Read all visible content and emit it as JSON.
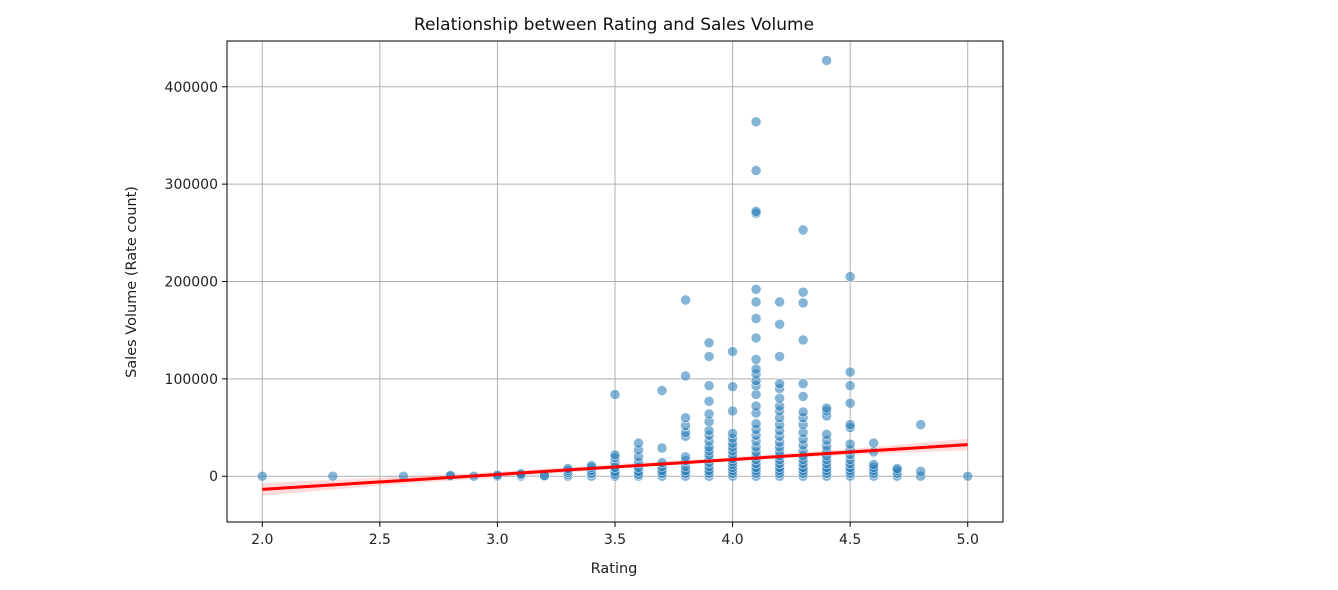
{
  "chart_data": {
    "type": "scatter",
    "title": "Relationship between Rating and Sales Volume",
    "xlabel": "Rating",
    "ylabel": "Sales Volume (Rate count)",
    "xlim": [
      1.85,
      5.15
    ],
    "ylim": [
      -47000,
      447000
    ],
    "xticks": [
      2.0,
      2.5,
      3.0,
      3.5,
      4.0,
      4.5,
      5.0
    ],
    "xtick_labels": [
      "2.0",
      "2.5",
      "3.0",
      "3.5",
      "4.0",
      "4.5",
      "5.0"
    ],
    "yticks": [
      0,
      100000,
      200000,
      300000,
      400000
    ],
    "ytick_labels": [
      "0",
      "100000",
      "200000",
      "300000",
      "400000"
    ],
    "grid": true,
    "point_color": "#1f77b4",
    "line_color": "#ff0000",
    "band_color": "#ff9999",
    "regression": {
      "x": [
        2.0,
        5.0
      ],
      "y": [
        -13500,
        32500
      ]
    },
    "band": {
      "x": [
        2.0,
        2.5,
        3.0,
        3.5,
        3.8,
        4.0,
        4.2,
        4.5,
        5.0
      ],
      "lower": [
        -20000,
        -9500,
        -1500,
        7500,
        12500,
        15500,
        18500,
        22000,
        26500
      ],
      "upper": [
        -7000,
        -1500,
        4500,
        12500,
        16500,
        19500,
        23000,
        28000,
        38500
      ]
    },
    "points": [
      [
        2.0,
        0
      ],
      [
        2.3,
        0
      ],
      [
        2.6,
        0
      ],
      [
        2.8,
        0
      ],
      [
        2.8,
        800
      ],
      [
        2.9,
        0
      ],
      [
        3.0,
        0
      ],
      [
        3.0,
        1200
      ],
      [
        3.1,
        0
      ],
      [
        3.1,
        1500
      ],
      [
        3.1,
        2500
      ],
      [
        3.2,
        0
      ],
      [
        3.2,
        800
      ],
      [
        3.3,
        0
      ],
      [
        3.3,
        2000
      ],
      [
        3.3,
        4000
      ],
      [
        3.3,
        6000
      ],
      [
        3.3,
        8000
      ],
      [
        3.4,
        0
      ],
      [
        3.4,
        3000
      ],
      [
        3.4,
        6000
      ],
      [
        3.4,
        9000
      ],
      [
        3.4,
        11000
      ],
      [
        3.5,
        0
      ],
      [
        3.5,
        2000
      ],
      [
        3.5,
        5000
      ],
      [
        3.5,
        9000
      ],
      [
        3.5,
        14000
      ],
      [
        3.5,
        19000
      ],
      [
        3.5,
        22000
      ],
      [
        3.5,
        84000
      ],
      [
        3.6,
        0
      ],
      [
        3.6,
        2000
      ],
      [
        3.6,
        5000
      ],
      [
        3.6,
        9000
      ],
      [
        3.6,
        14000
      ],
      [
        3.6,
        20000
      ],
      [
        3.6,
        27000
      ],
      [
        3.6,
        34000
      ],
      [
        3.7,
        0
      ],
      [
        3.7,
        3000
      ],
      [
        3.7,
        6000
      ],
      [
        3.7,
        10000
      ],
      [
        3.7,
        14000
      ],
      [
        3.7,
        29000
      ],
      [
        3.7,
        88000
      ],
      [
        3.8,
        0
      ],
      [
        3.8,
        3000
      ],
      [
        3.8,
        6000
      ],
      [
        3.8,
        10000
      ],
      [
        3.8,
        16000
      ],
      [
        3.8,
        20000
      ],
      [
        3.8,
        41000
      ],
      [
        3.8,
        45000
      ],
      [
        3.8,
        52000
      ],
      [
        3.8,
        60000
      ],
      [
        3.8,
        103000
      ],
      [
        3.8,
        181000
      ],
      [
        3.9,
        0
      ],
      [
        3.9,
        3000
      ],
      [
        3.9,
        6000
      ],
      [
        3.9,
        10000
      ],
      [
        3.9,
        14000
      ],
      [
        3.9,
        18000
      ],
      [
        3.9,
        22000
      ],
      [
        3.9,
        26000
      ],
      [
        3.9,
        30000
      ],
      [
        3.9,
        36000
      ],
      [
        3.9,
        42000
      ],
      [
        3.9,
        47000
      ],
      [
        3.9,
        56000
      ],
      [
        3.9,
        64000
      ],
      [
        3.9,
        77000
      ],
      [
        3.9,
        93000
      ],
      [
        3.9,
        123000
      ],
      [
        3.9,
        137000
      ],
      [
        4.0,
        0
      ],
      [
        4.0,
        3000
      ],
      [
        4.0,
        6000
      ],
      [
        4.0,
        9000
      ],
      [
        4.0,
        12000
      ],
      [
        4.0,
        15000
      ],
      [
        4.0,
        18000
      ],
      [
        4.0,
        22000
      ],
      [
        4.0,
        26000
      ],
      [
        4.0,
        30000
      ],
      [
        4.0,
        34000
      ],
      [
        4.0,
        39000
      ],
      [
        4.0,
        44000
      ],
      [
        4.0,
        67000
      ],
      [
        4.0,
        92000
      ],
      [
        4.0,
        128000
      ],
      [
        4.1,
        0
      ],
      [
        4.1,
        3000
      ],
      [
        4.1,
        6000
      ],
      [
        4.1,
        9000
      ],
      [
        4.1,
        13000
      ],
      [
        4.1,
        17000
      ],
      [
        4.1,
        21000
      ],
      [
        4.1,
        25000
      ],
      [
        4.1,
        30000
      ],
      [
        4.1,
        36000
      ],
      [
        4.1,
        42000
      ],
      [
        4.1,
        48000
      ],
      [
        4.1,
        54000
      ],
      [
        4.1,
        65000
      ],
      [
        4.1,
        72000
      ],
      [
        4.1,
        84000
      ],
      [
        4.1,
        93000
      ],
      [
        4.1,
        98000
      ],
      [
        4.1,
        105000
      ],
      [
        4.1,
        110000
      ],
      [
        4.1,
        120000
      ],
      [
        4.1,
        142000
      ],
      [
        4.1,
        162000
      ],
      [
        4.1,
        179000
      ],
      [
        4.1,
        192000
      ],
      [
        4.1,
        270000
      ],
      [
        4.1,
        272000
      ],
      [
        4.1,
        314000
      ],
      [
        4.1,
        364000
      ],
      [
        4.2,
        0
      ],
      [
        4.2,
        3000
      ],
      [
        4.2,
        6000
      ],
      [
        4.2,
        9000
      ],
      [
        4.2,
        13000
      ],
      [
        4.2,
        17000
      ],
      [
        4.2,
        21000
      ],
      [
        4.2,
        25000
      ],
      [
        4.2,
        30000
      ],
      [
        4.2,
        35000
      ],
      [
        4.2,
        41000
      ],
      [
        4.2,
        47000
      ],
      [
        4.2,
        53000
      ],
      [
        4.2,
        60000
      ],
      [
        4.2,
        67000
      ],
      [
        4.2,
        72000
      ],
      [
        4.2,
        80000
      ],
      [
        4.2,
        90000
      ],
      [
        4.2,
        95000
      ],
      [
        4.2,
        123000
      ],
      [
        4.2,
        156000
      ],
      [
        4.2,
        179000
      ],
      [
        4.3,
        0
      ],
      [
        4.3,
        3000
      ],
      [
        4.3,
        6000
      ],
      [
        4.3,
        9000
      ],
      [
        4.3,
        13000
      ],
      [
        4.3,
        17000
      ],
      [
        4.3,
        21000
      ],
      [
        4.3,
        26000
      ],
      [
        4.3,
        32000
      ],
      [
        4.3,
        38000
      ],
      [
        4.3,
        45000
      ],
      [
        4.3,
        53000
      ],
      [
        4.3,
        60000
      ],
      [
        4.3,
        66000
      ],
      [
        4.3,
        82000
      ],
      [
        4.3,
        95000
      ],
      [
        4.3,
        140000
      ],
      [
        4.3,
        178000
      ],
      [
        4.3,
        189000
      ],
      [
        4.3,
        253000
      ],
      [
        4.4,
        0
      ],
      [
        4.4,
        3000
      ],
      [
        4.4,
        6000
      ],
      [
        4.4,
        9000
      ],
      [
        4.4,
        13000
      ],
      [
        4.4,
        17000
      ],
      [
        4.4,
        21000
      ],
      [
        4.4,
        26000
      ],
      [
        4.4,
        31000
      ],
      [
        4.4,
        37000
      ],
      [
        4.4,
        43000
      ],
      [
        4.4,
        62000
      ],
      [
        4.4,
        67000
      ],
      [
        4.4,
        70000
      ],
      [
        4.4,
        427000
      ],
      [
        4.5,
        0
      ],
      [
        4.5,
        3000
      ],
      [
        4.5,
        6000
      ],
      [
        4.5,
        9000
      ],
      [
        4.5,
        13000
      ],
      [
        4.5,
        17000
      ],
      [
        4.5,
        22000
      ],
      [
        4.5,
        27000
      ],
      [
        4.5,
        33000
      ],
      [
        4.5,
        50000
      ],
      [
        4.5,
        53000
      ],
      [
        4.5,
        75000
      ],
      [
        4.5,
        93000
      ],
      [
        4.5,
        107000
      ],
      [
        4.5,
        205000
      ],
      [
        4.6,
        0
      ],
      [
        4.6,
        3000
      ],
      [
        4.6,
        6000
      ],
      [
        4.6,
        9000
      ],
      [
        4.6,
        12000
      ],
      [
        4.6,
        25000
      ],
      [
        4.6,
        34000
      ],
      [
        4.7,
        0
      ],
      [
        4.7,
        3000
      ],
      [
        4.7,
        6000
      ],
      [
        4.7,
        8000
      ],
      [
        4.8,
        0
      ],
      [
        4.8,
        5000
      ],
      [
        4.8,
        53000
      ],
      [
        5.0,
        0
      ]
    ]
  }
}
